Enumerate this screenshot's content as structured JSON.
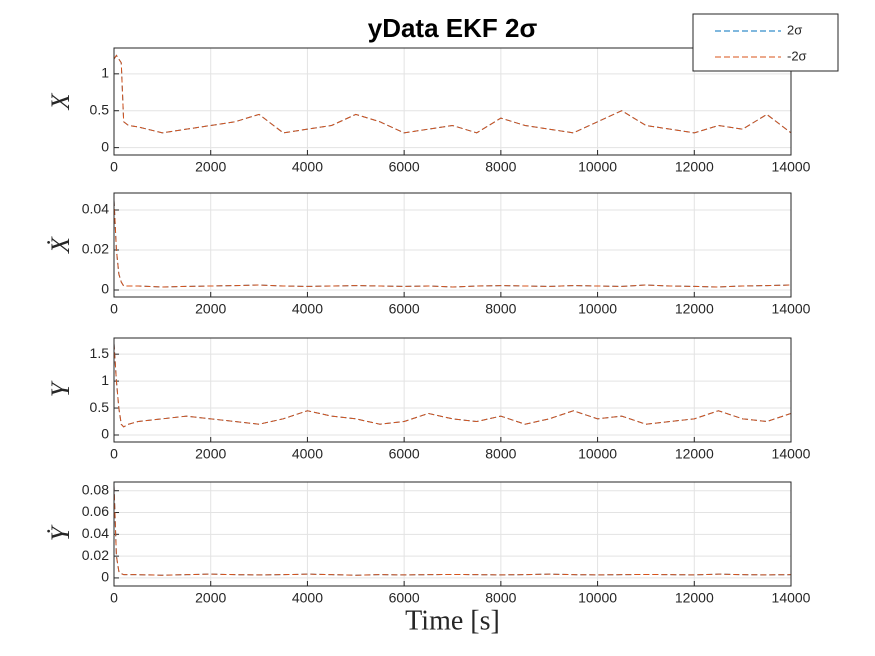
{
  "chart_data": [
    {
      "type": "line",
      "title": "yData EKF 2σ",
      "ylabel": "X",
      "legend": "top-right",
      "grid": true,
      "x": [
        0,
        50,
        100,
        150,
        200,
        300,
        500,
        1000,
        1500,
        2000,
        2500,
        3000,
        3500,
        4000,
        4500,
        5000,
        5500,
        6000,
        6500,
        7000,
        7500,
        8000,
        8500,
        9000,
        9500,
        10000,
        10500,
        11000,
        11500,
        12000,
        12500,
        13000,
        13500,
        14000
      ],
      "xlim": [
        0,
        14000
      ],
      "xticks": [
        0,
        2000,
        4000,
        6000,
        8000,
        10000,
        12000,
        14000
      ],
      "ylim": [
        -0.1,
        1.35
      ],
      "yticks": [
        0,
        0.5,
        1
      ],
      "series": [
        {
          "name": "2σ",
          "color": "#0072bd",
          "values": [
            1.2,
            1.25,
            1.2,
            1.15,
            0.35,
            0.3,
            0.28,
            0.2,
            0.25,
            0.3,
            0.35,
            0.45,
            0.2,
            0.25,
            0.3,
            0.45,
            0.35,
            0.2,
            0.25,
            0.3,
            0.2,
            0.4,
            0.3,
            0.25,
            0.2,
            0.35,
            0.5,
            0.3,
            0.25,
            0.2,
            0.3,
            0.25,
            0.45,
            0.2
          ]
        },
        {
          "name": "-2σ",
          "color": "#d95319",
          "values": [
            1.2,
            1.25,
            1.2,
            1.15,
            0.35,
            0.3,
            0.28,
            0.2,
            0.25,
            0.3,
            0.35,
            0.45,
            0.2,
            0.25,
            0.3,
            0.45,
            0.35,
            0.2,
            0.25,
            0.3,
            0.2,
            0.4,
            0.3,
            0.25,
            0.2,
            0.35,
            0.5,
            0.3,
            0.25,
            0.2,
            0.3,
            0.25,
            0.45,
            0.2
          ]
        }
      ]
    },
    {
      "type": "line",
      "ylabel": "Ẋ",
      "grid": true,
      "x": [
        0,
        50,
        100,
        150,
        200,
        300,
        500,
        1000,
        1500,
        2000,
        2500,
        3000,
        3500,
        4000,
        4500,
        5000,
        5500,
        6000,
        6500,
        7000,
        7500,
        8000,
        8500,
        9000,
        9500,
        10000,
        10500,
        11000,
        11500,
        12000,
        12500,
        13000,
        13500,
        14000
      ],
      "xlim": [
        0,
        14000
      ],
      "xticks": [
        0,
        2000,
        4000,
        6000,
        8000,
        10000,
        12000,
        14000
      ],
      "ylim": [
        -0.0035,
        0.0485
      ],
      "yticks": [
        0,
        0.02,
        0.04
      ],
      "series": [
        {
          "color": "#0072bd",
          "values": [
            0.045,
            0.02,
            0.008,
            0.004,
            0.002,
            0.002,
            0.002,
            0.0015,
            0.0018,
            0.002,
            0.0022,
            0.0025,
            0.002,
            0.0018,
            0.002,
            0.0022,
            0.002,
            0.0018,
            0.002,
            0.0015,
            0.002,
            0.0022,
            0.002,
            0.0018,
            0.0022,
            0.002,
            0.0018,
            0.0025,
            0.002,
            0.0018,
            0.0015,
            0.002,
            0.0022,
            0.0025
          ]
        },
        {
          "color": "#d95319",
          "values": [
            0.045,
            0.02,
            0.008,
            0.004,
            0.002,
            0.002,
            0.002,
            0.0015,
            0.0018,
            0.002,
            0.0022,
            0.0025,
            0.002,
            0.0018,
            0.002,
            0.0022,
            0.002,
            0.0018,
            0.002,
            0.0015,
            0.002,
            0.0022,
            0.002,
            0.0018,
            0.0022,
            0.002,
            0.0018,
            0.0025,
            0.002,
            0.0018,
            0.0015,
            0.002,
            0.0022,
            0.0025
          ]
        }
      ]
    },
    {
      "type": "line",
      "ylabel": "Y",
      "grid": true,
      "x": [
        0,
        50,
        100,
        150,
        200,
        300,
        500,
        1000,
        1500,
        2000,
        2500,
        3000,
        3500,
        4000,
        4500,
        5000,
        5500,
        6000,
        6500,
        7000,
        7500,
        8000,
        8500,
        9000,
        9500,
        10000,
        10500,
        11000,
        11500,
        12000,
        12500,
        13000,
        13500,
        14000
      ],
      "xlim": [
        0,
        14000
      ],
      "xticks": [
        0,
        2000,
        4000,
        6000,
        8000,
        10000,
        12000,
        14000
      ],
      "ylim": [
        -0.13,
        1.8
      ],
      "yticks": [
        0,
        0.5,
        1,
        1.5
      ],
      "series": [
        {
          "color": "#0072bd",
          "values": [
            1.7,
            1.0,
            0.5,
            0.2,
            0.15,
            0.2,
            0.25,
            0.3,
            0.35,
            0.3,
            0.25,
            0.2,
            0.3,
            0.45,
            0.35,
            0.3,
            0.2,
            0.25,
            0.4,
            0.3,
            0.25,
            0.35,
            0.2,
            0.3,
            0.45,
            0.3,
            0.35,
            0.2,
            0.25,
            0.3,
            0.45,
            0.3,
            0.25,
            0.4
          ]
        },
        {
          "color": "#d95319",
          "values": [
            1.7,
            1.0,
            0.5,
            0.2,
            0.15,
            0.2,
            0.25,
            0.3,
            0.35,
            0.3,
            0.25,
            0.2,
            0.3,
            0.45,
            0.35,
            0.3,
            0.2,
            0.25,
            0.4,
            0.3,
            0.25,
            0.35,
            0.2,
            0.3,
            0.45,
            0.3,
            0.35,
            0.2,
            0.25,
            0.3,
            0.45,
            0.3,
            0.25,
            0.4
          ]
        }
      ]
    },
    {
      "type": "line",
      "ylabel": "Ẏ",
      "xlabel": "Time [s]",
      "grid": true,
      "x": [
        0,
        50,
        100,
        150,
        200,
        300,
        500,
        1000,
        1500,
        2000,
        2500,
        3000,
        3500,
        4000,
        4500,
        5000,
        5500,
        6000,
        6500,
        7000,
        7500,
        8000,
        8500,
        9000,
        9500,
        10000,
        10500,
        11000,
        11500,
        12000,
        12500,
        13000,
        13500,
        14000
      ],
      "xlim": [
        0,
        14000
      ],
      "xticks": [
        0,
        2000,
        4000,
        6000,
        8000,
        10000,
        12000,
        14000
      ],
      "ylim": [
        -0.0074,
        0.088
      ],
      "yticks": [
        0,
        0.02,
        0.04,
        0.06,
        0.08
      ],
      "series": [
        {
          "color": "#0072bd",
          "values": [
            0.085,
            0.02,
            0.006,
            0.004,
            0.003,
            0.003,
            0.003,
            0.0025,
            0.003,
            0.0035,
            0.003,
            0.0028,
            0.003,
            0.0035,
            0.003,
            0.0025,
            0.003,
            0.0028,
            0.003,
            0.0032,
            0.003,
            0.0028,
            0.003,
            0.0035,
            0.003,
            0.0028,
            0.003,
            0.0032,
            0.003,
            0.0028,
            0.0035,
            0.003,
            0.0028,
            0.003
          ]
        },
        {
          "color": "#d95319",
          "values": [
            0.085,
            0.02,
            0.006,
            0.004,
            0.003,
            0.003,
            0.003,
            0.0025,
            0.003,
            0.0035,
            0.003,
            0.0028,
            0.003,
            0.0035,
            0.003,
            0.0025,
            0.003,
            0.0028,
            0.003,
            0.0032,
            0.003,
            0.0028,
            0.003,
            0.0035,
            0.003,
            0.0028,
            0.003,
            0.0032,
            0.003,
            0.0028,
            0.0035,
            0.003,
            0.0028,
            0.003
          ]
        }
      ]
    }
  ]
}
